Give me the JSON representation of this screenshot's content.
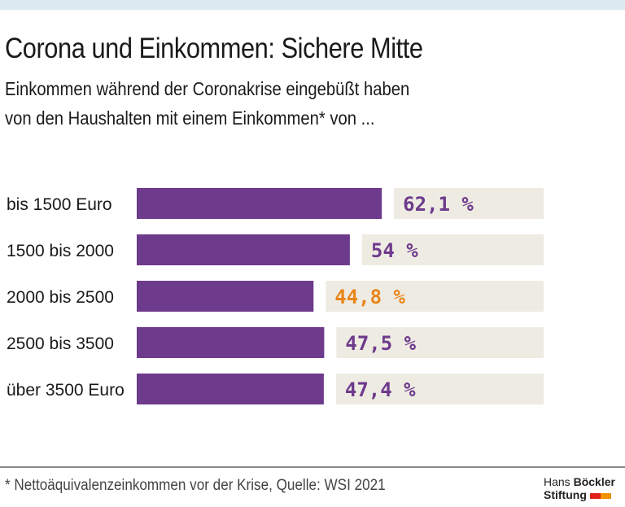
{
  "header": {
    "title": "Corona und Einkommen: Sichere Mitte",
    "subtitle_line1": "Einkommen während der Coronakrise eingebüßt haben",
    "subtitle_line2": "von den Haushalten mit einem Einkommen* von ..."
  },
  "chart_data": {
    "type": "bar",
    "orientation": "horizontal",
    "categories": [
      "bis 1500 Euro",
      "1500 bis 2000",
      "2000 bis 2500",
      "2500 bis 3500",
      "über 3500 Euro"
    ],
    "values": [
      62.1,
      54,
      44.8,
      47.5,
      47.4
    ],
    "labels": [
      "62,1 %",
      "54 %",
      "44,8 %",
      "47,5 %",
      "47,4 %"
    ],
    "highlight_index": 2,
    "colors": {
      "bar": "#6e3a8c",
      "label_bg": "#eeebe3",
      "label": "#6e3a8c",
      "highlight_label": "#e8861a"
    }
  },
  "footer": {
    "note": "* Nettoäquivalenzeinkommen vor der Krise, Quelle: WSI 2021",
    "logo_line1_a": "Hans ",
    "logo_line1_b": "Böckler",
    "logo_line2": "Stiftung",
    "logo_colors": [
      "#e2231a",
      "#f39200"
    ]
  }
}
